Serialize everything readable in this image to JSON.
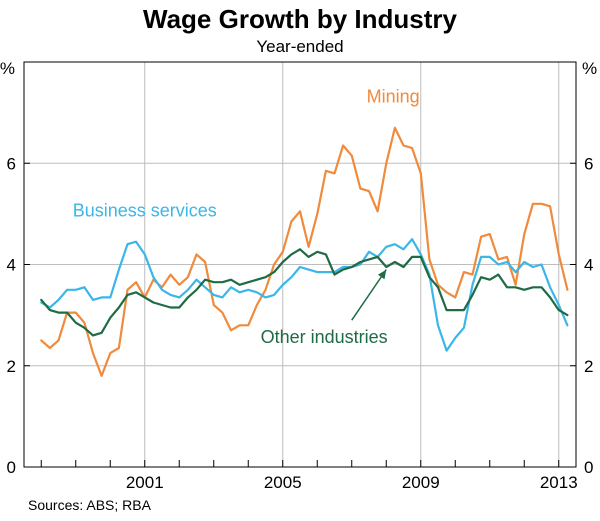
{
  "chart_data": {
    "type": "line",
    "title": "Wage Growth by Industry",
    "subtitle": "Year-ended",
    "source": "Sources: ABS; RBA",
    "ylabel_left": "%",
    "ylabel_right": "%",
    "ylim": [
      0,
      8
    ],
    "yticks": [
      "0",
      "2",
      "4",
      "6"
    ],
    "xlim": [
      1997.5,
      2013.5
    ],
    "xticks": [
      {
        "value": 2001,
        "label": "2001"
      },
      {
        "value": 2005,
        "label": "2005"
      },
      {
        "value": 2009,
        "label": "2009"
      },
      {
        "value": 2013,
        "label": "2013"
      }
    ],
    "grid": true,
    "series": [
      {
        "name": "Mining",
        "color": "#F08A3C",
        "values": [
          [
            1998.0,
            2.5
          ],
          [
            1998.25,
            2.35
          ],
          [
            1998.5,
            2.5
          ],
          [
            1998.75,
            3.05
          ],
          [
            1999.0,
            3.05
          ],
          [
            1999.25,
            2.85
          ],
          [
            1999.5,
            2.25
          ],
          [
            1999.75,
            1.8
          ],
          [
            2000.0,
            2.25
          ],
          [
            2000.25,
            2.35
          ],
          [
            2000.5,
            3.5
          ],
          [
            2000.75,
            3.65
          ],
          [
            2001.0,
            3.35
          ],
          [
            2001.25,
            3.7
          ],
          [
            2001.5,
            3.55
          ],
          [
            2001.75,
            3.8
          ],
          [
            2002.0,
            3.6
          ],
          [
            2002.25,
            3.75
          ],
          [
            2002.5,
            4.2
          ],
          [
            2002.75,
            4.05
          ],
          [
            2003.0,
            3.2
          ],
          [
            2003.25,
            3.05
          ],
          [
            2003.5,
            2.7
          ],
          [
            2003.75,
            2.8
          ],
          [
            2004.0,
            2.8
          ],
          [
            2004.25,
            3.2
          ],
          [
            2004.5,
            3.5
          ],
          [
            2004.75,
            4.0
          ],
          [
            2005.0,
            4.25
          ],
          [
            2005.25,
            4.85
          ],
          [
            2005.5,
            5.05
          ],
          [
            2005.75,
            4.35
          ],
          [
            2006.0,
            5.0
          ],
          [
            2006.25,
            5.85
          ],
          [
            2006.5,
            5.8
          ],
          [
            2006.75,
            6.35
          ],
          [
            2007.0,
            6.15
          ],
          [
            2007.25,
            5.5
          ],
          [
            2007.5,
            5.45
          ],
          [
            2007.75,
            5.05
          ],
          [
            2008.0,
            6.0
          ],
          [
            2008.25,
            6.7
          ],
          [
            2008.5,
            6.35
          ],
          [
            2008.75,
            6.3
          ],
          [
            2009.0,
            5.8
          ],
          [
            2009.25,
            4.1
          ],
          [
            2009.5,
            3.6
          ],
          [
            2009.75,
            3.45
          ],
          [
            2010.0,
            3.35
          ],
          [
            2010.25,
            3.85
          ],
          [
            2010.5,
            3.8
          ],
          [
            2010.75,
            4.55
          ],
          [
            2011.0,
            4.6
          ],
          [
            2011.25,
            4.1
          ],
          [
            2011.5,
            4.15
          ],
          [
            2011.75,
            3.6
          ],
          [
            2012.0,
            4.6
          ],
          [
            2012.25,
            5.2
          ],
          [
            2012.5,
            5.2
          ],
          [
            2012.75,
            5.15
          ],
          [
            2013.0,
            4.2
          ],
          [
            2013.25,
            3.5
          ]
        ]
      },
      {
        "name": "Business services",
        "color": "#3BB6E8",
        "values": [
          [
            1998.0,
            3.25
          ],
          [
            1998.25,
            3.15
          ],
          [
            1998.5,
            3.3
          ],
          [
            1998.75,
            3.5
          ],
          [
            1999.0,
            3.5
          ],
          [
            1999.25,
            3.55
          ],
          [
            1999.5,
            3.3
          ],
          [
            1999.75,
            3.35
          ],
          [
            2000.0,
            3.35
          ],
          [
            2000.25,
            3.9
          ],
          [
            2000.5,
            4.4
          ],
          [
            2000.75,
            4.45
          ],
          [
            2001.0,
            4.2
          ],
          [
            2001.25,
            3.75
          ],
          [
            2001.5,
            3.5
          ],
          [
            2001.75,
            3.4
          ],
          [
            2002.0,
            3.35
          ],
          [
            2002.25,
            3.5
          ],
          [
            2002.5,
            3.7
          ],
          [
            2002.75,
            3.55
          ],
          [
            2003.0,
            3.4
          ],
          [
            2003.25,
            3.35
          ],
          [
            2003.5,
            3.55
          ],
          [
            2003.75,
            3.45
          ],
          [
            2004.0,
            3.5
          ],
          [
            2004.25,
            3.45
          ],
          [
            2004.5,
            3.35
          ],
          [
            2004.75,
            3.4
          ],
          [
            2005.0,
            3.6
          ],
          [
            2005.25,
            3.75
          ],
          [
            2005.5,
            3.95
          ],
          [
            2005.75,
            3.9
          ],
          [
            2006.0,
            3.85
          ],
          [
            2006.25,
            3.85
          ],
          [
            2006.5,
            3.85
          ],
          [
            2006.75,
            3.95
          ],
          [
            2007.0,
            3.95
          ],
          [
            2007.25,
            4.0
          ],
          [
            2007.5,
            4.25
          ],
          [
            2007.75,
            4.15
          ],
          [
            2008.0,
            4.35
          ],
          [
            2008.25,
            4.4
          ],
          [
            2008.5,
            4.3
          ],
          [
            2008.75,
            4.5
          ],
          [
            2009.0,
            4.2
          ],
          [
            2009.25,
            3.8
          ],
          [
            2009.5,
            2.8
          ],
          [
            2009.75,
            2.3
          ],
          [
            2010.0,
            2.55
          ],
          [
            2010.25,
            2.75
          ],
          [
            2010.5,
            3.6
          ],
          [
            2010.75,
            4.15
          ],
          [
            2011.0,
            4.15
          ],
          [
            2011.25,
            4.0
          ],
          [
            2011.5,
            4.05
          ],
          [
            2011.75,
            3.85
          ],
          [
            2012.0,
            4.05
          ],
          [
            2012.25,
            3.95
          ],
          [
            2012.5,
            4.0
          ],
          [
            2012.75,
            3.55
          ],
          [
            2013.0,
            3.2
          ],
          [
            2013.25,
            2.8
          ]
        ]
      },
      {
        "name": "Other industries",
        "color": "#1E6B45",
        "values": [
          [
            1998.0,
            3.3
          ],
          [
            1998.25,
            3.1
          ],
          [
            1998.5,
            3.05
          ],
          [
            1998.75,
            3.05
          ],
          [
            1999.0,
            2.85
          ],
          [
            1999.25,
            2.75
          ],
          [
            1999.5,
            2.6
          ],
          [
            1999.75,
            2.65
          ],
          [
            2000.0,
            2.95
          ],
          [
            2000.25,
            3.15
          ],
          [
            2000.5,
            3.4
          ],
          [
            2000.75,
            3.45
          ],
          [
            2001.0,
            3.35
          ],
          [
            2001.25,
            3.25
          ],
          [
            2001.5,
            3.2
          ],
          [
            2001.75,
            3.15
          ],
          [
            2002.0,
            3.15
          ],
          [
            2002.25,
            3.35
          ],
          [
            2002.5,
            3.5
          ],
          [
            2002.75,
            3.7
          ],
          [
            2003.0,
            3.65
          ],
          [
            2003.25,
            3.65
          ],
          [
            2003.5,
            3.7
          ],
          [
            2003.75,
            3.6
          ],
          [
            2004.0,
            3.65
          ],
          [
            2004.25,
            3.7
          ],
          [
            2004.5,
            3.75
          ],
          [
            2004.75,
            3.85
          ],
          [
            2005.0,
            4.05
          ],
          [
            2005.25,
            4.2
          ],
          [
            2005.5,
            4.3
          ],
          [
            2005.75,
            4.15
          ],
          [
            2006.0,
            4.25
          ],
          [
            2006.25,
            4.2
          ],
          [
            2006.5,
            3.8
          ],
          [
            2006.75,
            3.9
          ],
          [
            2007.0,
            3.95
          ],
          [
            2007.25,
            4.05
          ],
          [
            2007.5,
            4.1
          ],
          [
            2007.75,
            4.15
          ],
          [
            2008.0,
            3.95
          ],
          [
            2008.25,
            4.05
          ],
          [
            2008.5,
            3.95
          ],
          [
            2008.75,
            4.15
          ],
          [
            2009.0,
            4.15
          ],
          [
            2009.25,
            3.75
          ],
          [
            2009.5,
            3.55
          ],
          [
            2009.75,
            3.1
          ],
          [
            2010.0,
            3.1
          ],
          [
            2010.25,
            3.1
          ],
          [
            2010.5,
            3.4
          ],
          [
            2010.75,
            3.75
          ],
          [
            2011.0,
            3.7
          ],
          [
            2011.25,
            3.8
          ],
          [
            2011.5,
            3.55
          ],
          [
            2011.75,
            3.55
          ],
          [
            2012.0,
            3.5
          ],
          [
            2012.25,
            3.55
          ],
          [
            2012.5,
            3.55
          ],
          [
            2012.75,
            3.35
          ],
          [
            2013.0,
            3.1
          ],
          [
            2013.25,
            3.0
          ]
        ]
      }
    ],
    "annotations": [
      {
        "text": "Mining",
        "series": "Mining",
        "at": [
          2008.2,
          7.2
        ]
      },
      {
        "text": "Business services",
        "series": "Business services",
        "at": [
          2001.0,
          4.95
        ]
      },
      {
        "text": "Other industries",
        "series": "Other industries",
        "at": [
          2006.2,
          2.45
        ],
        "arrow_from": [
          2007.0,
          2.9
        ],
        "arrow_to": [
          2008.0,
          3.9
        ]
      }
    ]
  }
}
